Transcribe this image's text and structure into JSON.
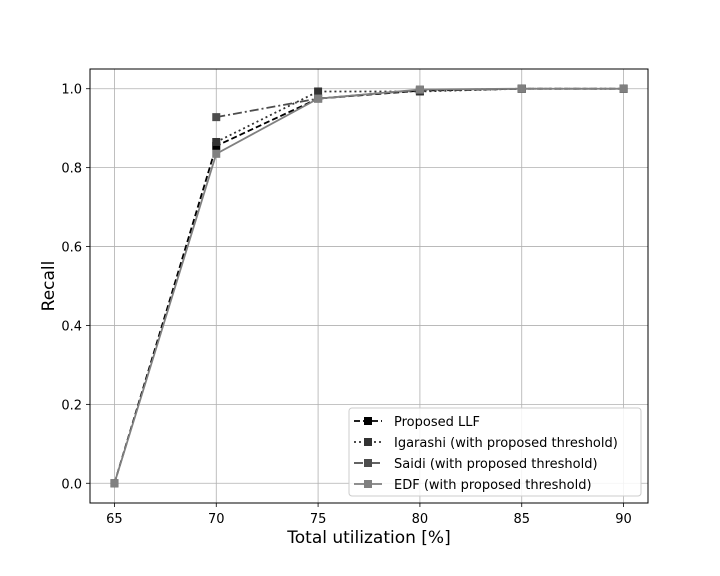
{
  "chart_data": {
    "type": "line",
    "x": [
      65,
      70,
      75,
      80,
      85,
      90
    ],
    "xlabel": "Total utilization [%]",
    "ylabel": "Recall",
    "xlim": [
      63.8,
      91.2
    ],
    "ylim": [
      -0.05,
      1.05
    ],
    "xticks": [
      "65",
      "70",
      "75",
      "80",
      "85",
      "90"
    ],
    "yticks": [
      "0.0",
      "0.2",
      "0.4",
      "0.6",
      "0.8",
      "1.0"
    ],
    "grid": true,
    "legend_position": "lower-right",
    "series": [
      {
        "name": "Proposed LLF",
        "x": [
          65,
          70,
          75,
          80,
          85,
          90
        ],
        "values": [
          0.0,
          0.855,
          0.975,
          0.995,
          1.0,
          1.0
        ],
        "color": "#000000",
        "dash": "dashed",
        "marker": "square"
      },
      {
        "name": "Igarashi (with proposed threshold)",
        "x": [
          70,
          75,
          80,
          85,
          90
        ],
        "values": [
          0.865,
          0.993,
          0.993,
          1.0,
          1.0
        ],
        "color": "#333333",
        "dash": "dotted",
        "marker": "square"
      },
      {
        "name": "Saidi (with proposed threshold)",
        "x": [
          70,
          75,
          80,
          85,
          90
        ],
        "values": [
          0.928,
          0.975,
          0.997,
          1.0,
          1.0
        ],
        "color": "#4d4d4d",
        "dash": "dashdot",
        "marker": "square"
      },
      {
        "name": "EDF (with proposed threshold)",
        "x": [
          65,
          70,
          75,
          80,
          85,
          90
        ],
        "values": [
          0.0,
          0.835,
          0.975,
          0.998,
          1.0,
          1.0
        ],
        "color": "#808080",
        "dash": "solid",
        "marker": "square"
      }
    ]
  }
}
